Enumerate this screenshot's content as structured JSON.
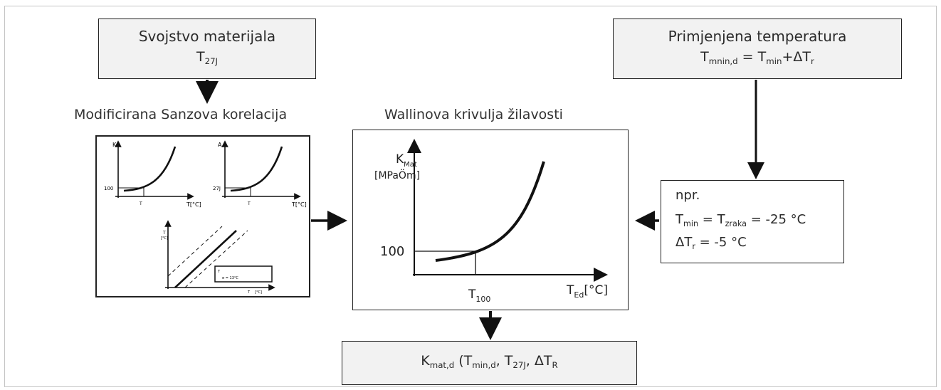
{
  "material_box": {
    "title": "Svojstvo materijala",
    "sym": "T",
    "sub": "27J"
  },
  "temperature_box": {
    "title": "Primjenjena temperatura",
    "lhs_T": "T",
    "lhs_sub": "mnin,d",
    "eq": " = ",
    "rhs_T": "T",
    "rhs_sub": "min",
    "plus": "+",
    "delta_T": "ΔT",
    "delta_sub": "r"
  },
  "sanz_caption": "Modificirana Sanzova korelacija",
  "wallin_caption": "Wallinova krivulja žilavosti",
  "sanz_mini": {
    "g1_y": "K",
    "g1_ref": "100",
    "g1_x_tick": "T",
    "g1_x_axis": "T[°C]",
    "g2_y": "A",
    "g2_ref": "27J",
    "g2_x_tick": "T",
    "g2_x_axis": "T[°C]",
    "g3_y": "T",
    "g3_y_unit": "[°C]",
    "g3_legend_1": "T",
    "g3_legend_2": "σ = 13°C",
    "g3_x_axis": "T",
    "g3_x_unit": "[°C]"
  },
  "wallin_chart": {
    "y_label": "K",
    "y_sub": "Mat",
    "y_unit": "[MPaÖm]",
    "ref_value": "100",
    "x_tick_T": "T",
    "x_tick_sub": "100",
    "x_axis_T": "T",
    "x_axis_sub": "Ed",
    "x_axis_unit": "[°C]"
  },
  "example_box": {
    "heading": "npr.",
    "line1_T": "T",
    "line1_sub": "min",
    "line1_eq": " = ",
    "line1_T2": "T",
    "line1_sub2": "zraka",
    "line1_val": " = -25 °C",
    "line2_T": "ΔT",
    "line2_sub": "r",
    "line2_val": " = -5 °C"
  },
  "result_box": {
    "K": "K",
    "K_sub": "mat,d",
    "open": " (T",
    "a_sub": "min,d",
    "sep1": ", T",
    "b_sub": "27J",
    "sep2": ", ΔT",
    "c_sub": "R"
  }
}
